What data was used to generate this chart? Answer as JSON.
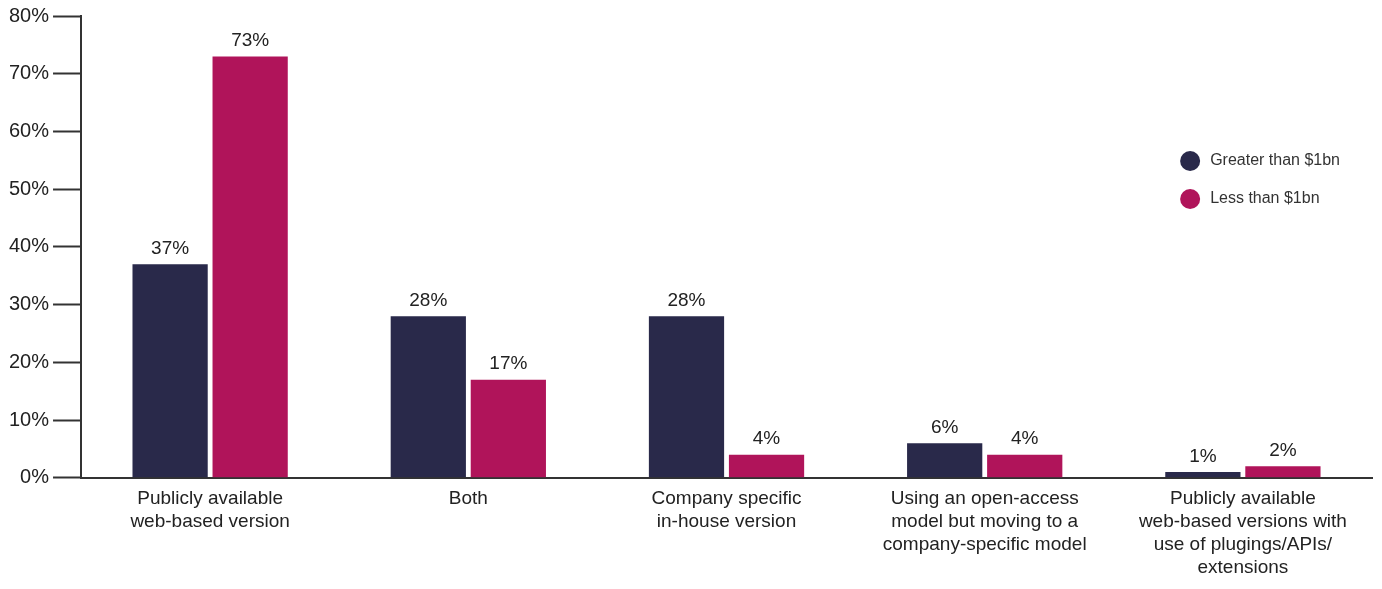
{
  "chart_data": {
    "type": "bar",
    "categories": [
      "Publicly available web-based version",
      "Both",
      "Company specific in-house version",
      "Using an open-access model but moving to a company-specific model",
      "Publicly available web-based versions with use of plugings/APIs/ extensions"
    ],
    "series": [
      {
        "name": "Greater than $1bn",
        "color": "#29294a",
        "values": [
          37,
          28,
          28,
          6,
          1
        ],
        "value_labels": [
          "37%",
          "28%",
          "28%",
          "6%",
          "1%"
        ]
      },
      {
        "name": "Less than $1bn",
        "color": "#b0145a",
        "values": [
          73,
          17,
          4,
          4,
          2
        ],
        "value_labels": [
          "73%",
          "17%",
          "4%",
          "4%",
          "2%"
        ]
      }
    ],
    "ylim": [
      0,
      80
    ],
    "yticks": [
      {
        "value": 0,
        "label": "0%"
      },
      {
        "value": 10,
        "label": "10%"
      },
      {
        "value": 20,
        "label": "20%"
      },
      {
        "value": 30,
        "label": "30%"
      },
      {
        "value": 40,
        "label": "40%"
      },
      {
        "value": 50,
        "label": "50%"
      },
      {
        "value": 60,
        "label": "60%"
      },
      {
        "value": 70,
        "label": "70%"
      },
      {
        "value": 80,
        "label": "80%"
      }
    ],
    "grid": false,
    "legend": "top right"
  }
}
